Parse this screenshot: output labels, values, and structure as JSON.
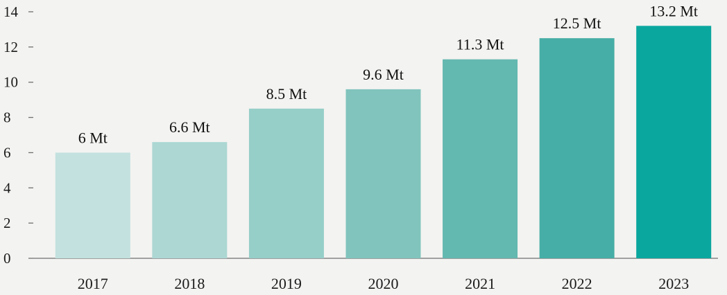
{
  "chart_data": {
    "type": "bar",
    "title": "",
    "xlabel": "",
    "ylabel": "",
    "categories": [
      "2017",
      "2018",
      "2019",
      "2020",
      "2021",
      "2022",
      "2023"
    ],
    "values": [
      6,
      6.6,
      8.5,
      9.6,
      11.3,
      12.5,
      13.2
    ],
    "data_labels": [
      "6 Mt",
      "6.6 Mt",
      "8.5 Mt",
      "9.6 Mt",
      "11.3 Mt",
      "12.5 Mt",
      "13.2 Mt"
    ],
    "ylim": [
      0,
      14
    ],
    "yticks": [
      0,
      2,
      4,
      6,
      8,
      10,
      12,
      14
    ],
    "ytick_labels": [
      "0",
      "2",
      "4",
      "6",
      "8",
      "10",
      "12",
      "14"
    ],
    "grid": false,
    "legend": "none",
    "colors": [
      "#c2e1df",
      "#acd7d3",
      "#96cec8",
      "#80c4bd",
      "#63b8b0",
      "#46aea6",
      "#0aa79f"
    ],
    "background": "#f3f3f1"
  }
}
